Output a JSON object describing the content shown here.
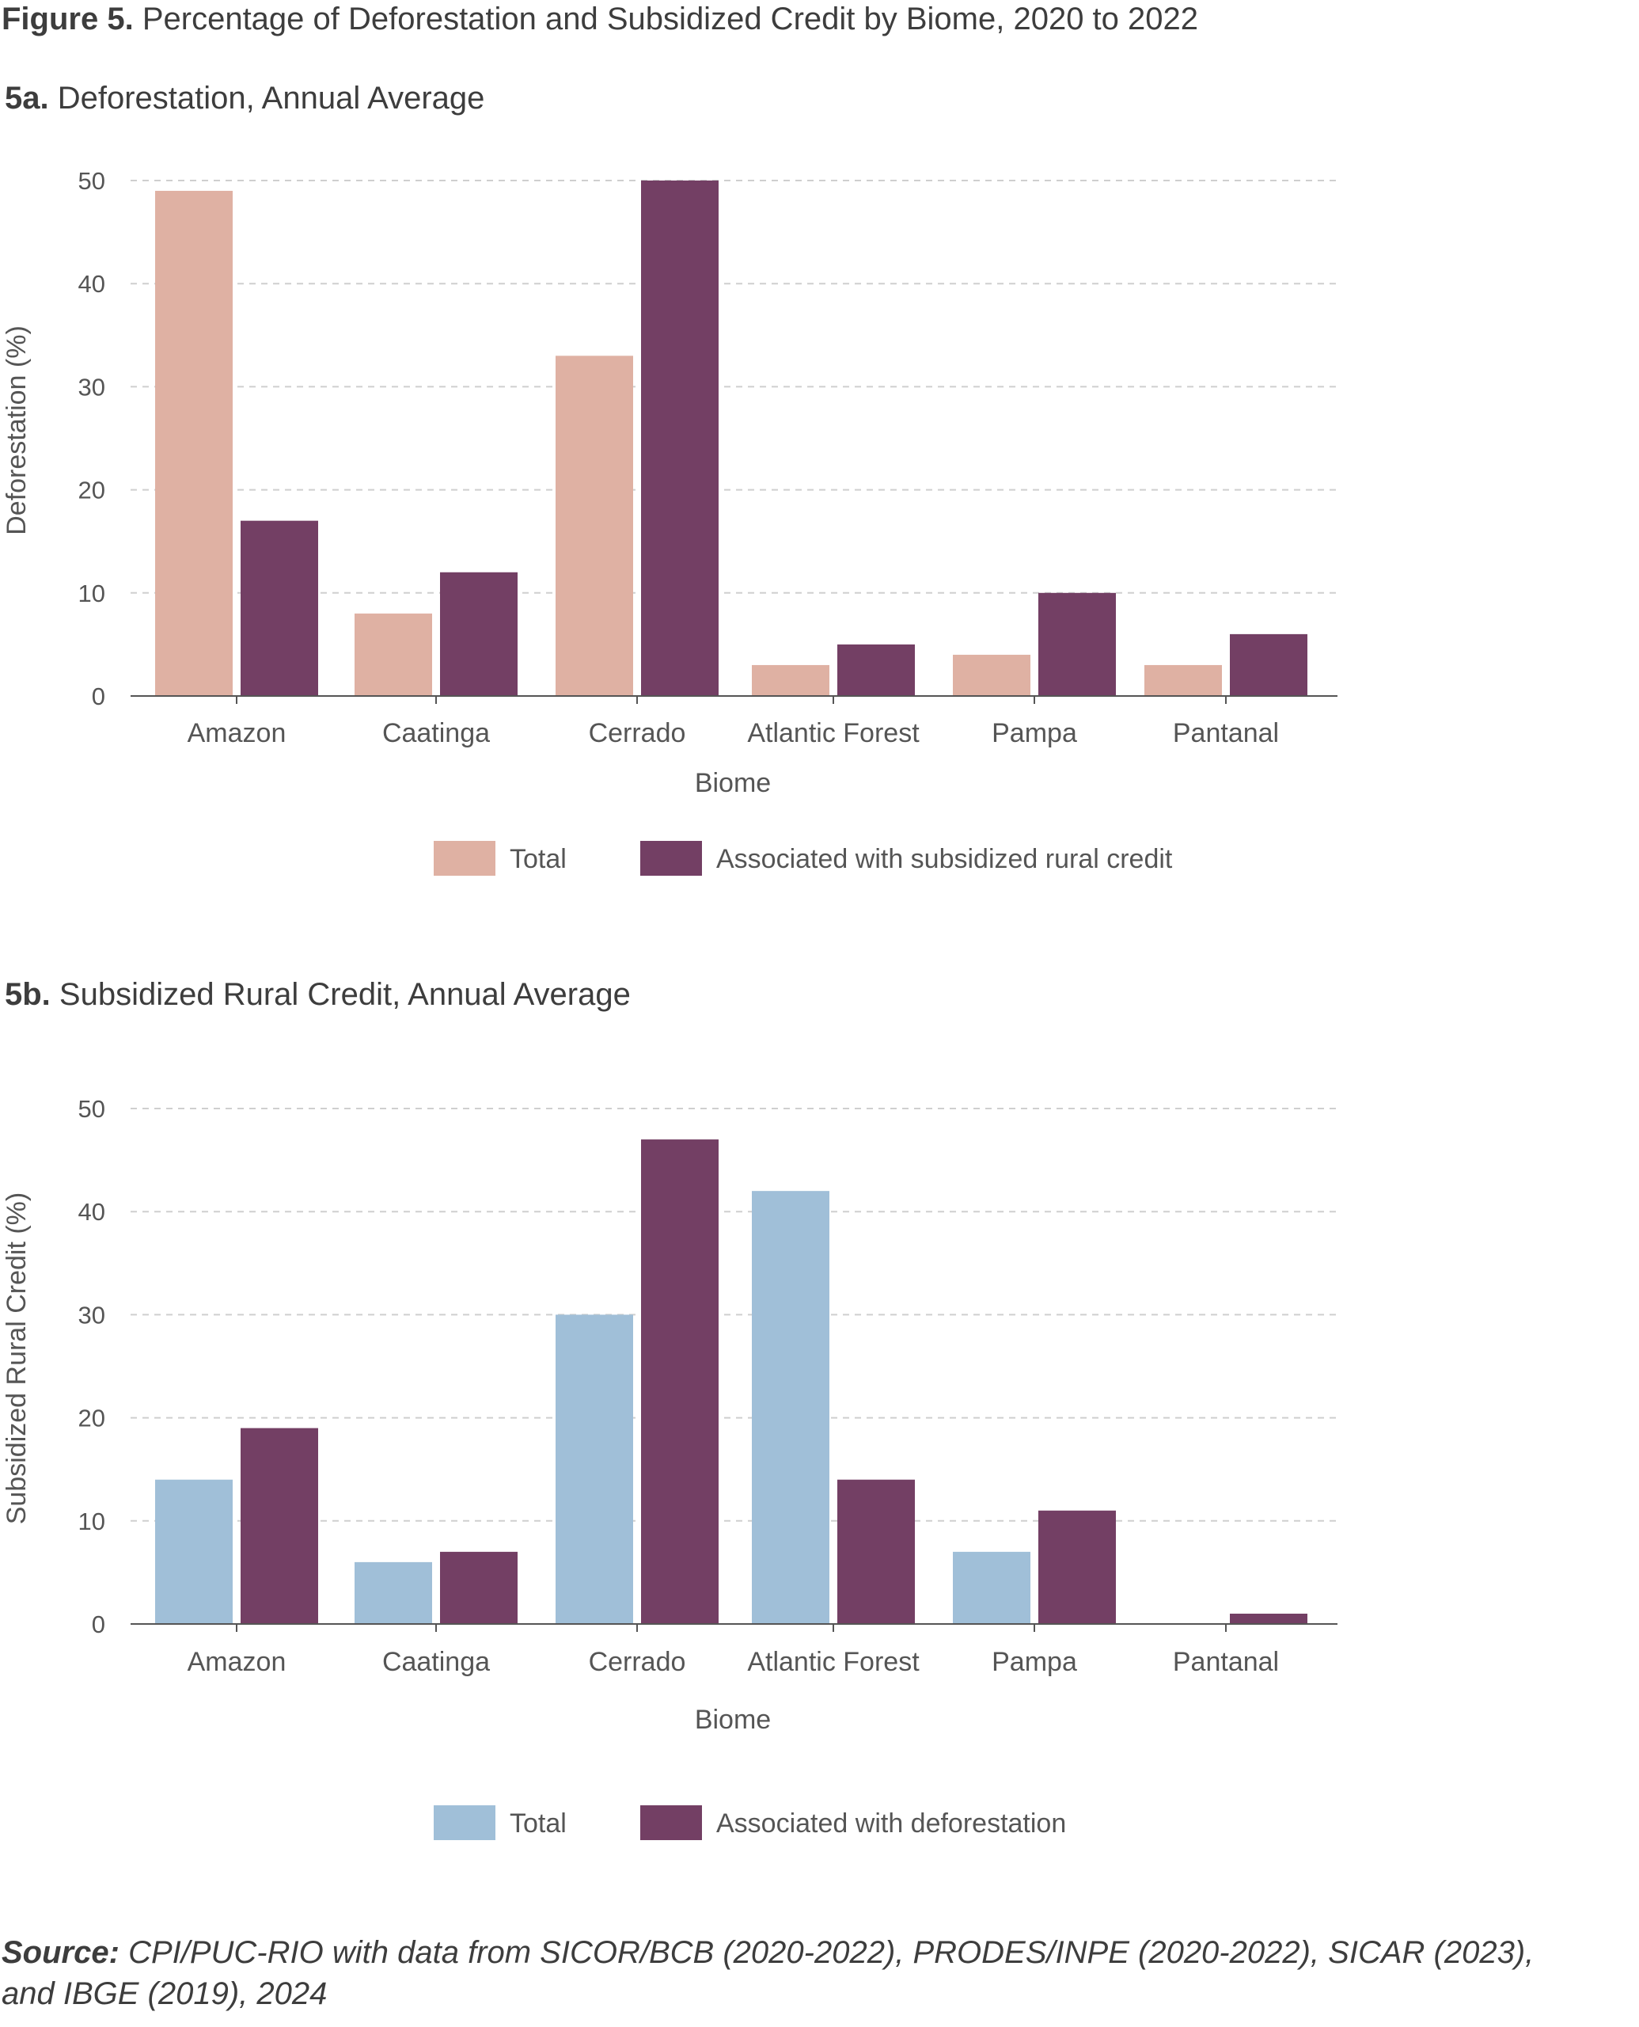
{
  "figure": {
    "label": "Figure 5.",
    "title": "Percentage of Deforestation and Subsidized Credit by Biome, 2020 to 2022"
  },
  "colors": {
    "total_a": "#dfb1a3",
    "total_b": "#a0bfd8",
    "associated": "#733f64",
    "grid": "#cfcfcf",
    "axis": "#555555"
  },
  "chart_data": [
    {
      "id": "a",
      "type": "bar",
      "label": "5a.",
      "title": "Deforestation, Annual Average",
      "xlabel": "Biome",
      "ylabel": "Deforestation (%)",
      "ylim": [
        0,
        50
      ],
      "yticks": [
        "0",
        "10",
        "20",
        "30",
        "40",
        "50"
      ],
      "grid": true,
      "legend_position": "bottom",
      "categories": [
        "Amazon",
        "Caatinga",
        "Cerrado",
        "Atlantic Forest",
        "Pampa",
        "Pantanal"
      ],
      "series": [
        {
          "name": "Total",
          "values": [
            49,
            8,
            33,
            3,
            4,
            3
          ]
        },
        {
          "name": "Associated with subsidized rural credit",
          "values": [
            17,
            12,
            50,
            5,
            10,
            6
          ]
        }
      ]
    },
    {
      "id": "b",
      "type": "bar",
      "label": "5b.",
      "title": "Subsidized Rural Credit, Annual Average",
      "xlabel": "Biome",
      "ylabel": "Subsidized Rural Credit (%)",
      "ylim": [
        0,
        50
      ],
      "yticks": [
        "0",
        "10",
        "20",
        "30",
        "40",
        "50"
      ],
      "grid": true,
      "legend_position": "bottom",
      "categories": [
        "Amazon",
        "Caatinga",
        "Cerrado",
        "Atlantic Forest",
        "Pampa",
        "Pantanal"
      ],
      "series": [
        {
          "name": "Total",
          "values": [
            14,
            6,
            30,
            42,
            7,
            0
          ]
        },
        {
          "name": "Associated with deforestation",
          "values": [
            19,
            7,
            47,
            14,
            11,
            1
          ]
        }
      ]
    }
  ],
  "source": {
    "label": "Source:",
    "text": "CPI/PUC-RIO with data from SICOR/BCB (2020-2022), PRODES/INPE (2020-2022), SICAR (2023), and IBGE (2019), 2024"
  }
}
